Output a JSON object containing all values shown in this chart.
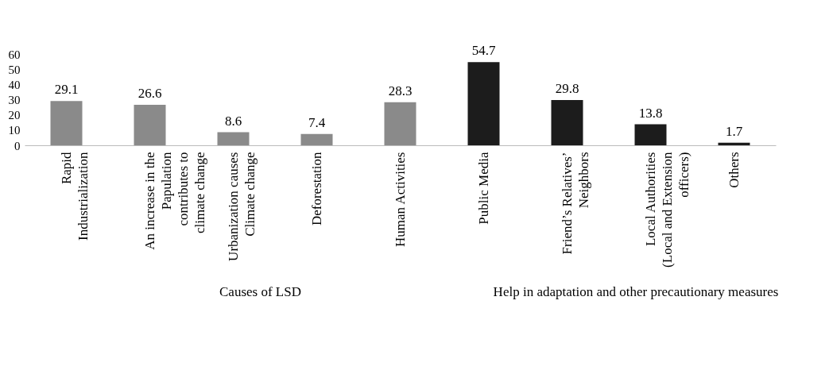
{
  "chart_data": {
    "type": "bar",
    "categories": [
      "Rapid Industrialization",
      "An increase in the Papulation contributes to climate change",
      "Urbanization causes Climate change",
      "Deforestation",
      "Human Activities",
      "Public Media",
      "Friend’s Relatives’ Neighbors",
      "Local Authorities (Local and Extension officers)",
      "Others"
    ],
    "values": [
      29.1,
      26.6,
      8.6,
      7.4,
      28.3,
      54.7,
      29.8,
      13.8,
      1.7
    ],
    "colors": [
      "#8a8a8a",
      "#8a8a8a",
      "#8a8a8a",
      "#8a8a8a",
      "#8a8a8a",
      "#1c1c1c",
      "#1c1c1c",
      "#1c1c1c",
      "#1c1c1c"
    ],
    "ylim": [
      0,
      60
    ],
    "yticks": [
      0,
      10,
      20,
      30,
      40,
      50,
      60
    ],
    "data_labels": true,
    "annotations": [
      "Causes of LSD",
      "Help in adaptation and other precautionary measures"
    ]
  }
}
